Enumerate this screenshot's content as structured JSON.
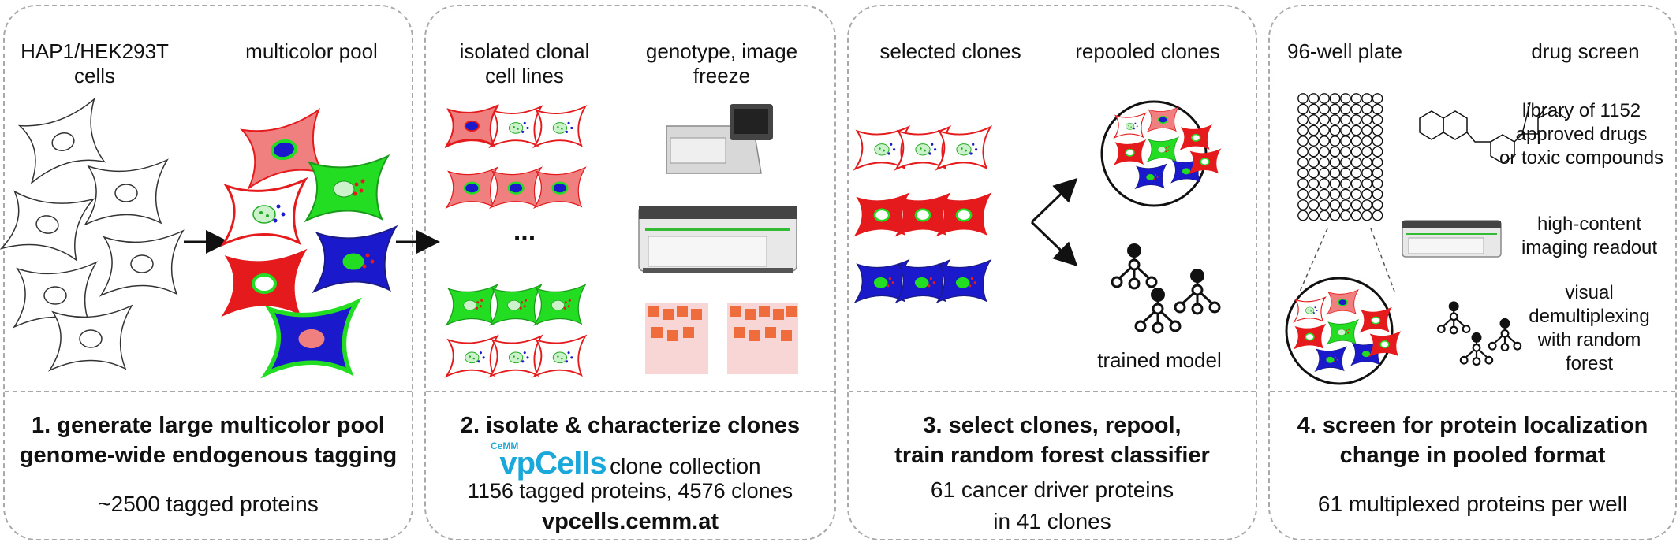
{
  "panel1": {
    "label_left_1": "HAP1/HEK293T",
    "label_left_2": "cells",
    "label_right": "multicolor pool",
    "title_1": "1. generate large multicolor pool",
    "title_2": "genome-wide endogenous tagging",
    "subtitle": "~2500 tagged proteins"
  },
  "panel2": {
    "label_left_1": "isolated clonal",
    "label_left_2": "cell lines",
    "label_right_1": "genotype, image",
    "label_right_2": "freeze",
    "ellipsis": "...",
    "title": "2. isolate & characterize clones",
    "logo_small": "CeMM",
    "logo_main": "vpCells",
    "logo_suffix": "clone collection",
    "stats": "1156 tagged proteins, 4576 clones",
    "url": "vpcells.cemm.at"
  },
  "panel3": {
    "label_left": "selected clones",
    "label_right": "repooled clones",
    "model_label": "trained model",
    "title_1": "3. select clones, repool,",
    "title_2": "train random forest classifier",
    "sub_1": "61 cancer driver proteins",
    "sub_2": "in 41 clones"
  },
  "panel4": {
    "label_left": "96-well plate",
    "label_right": "drug screen",
    "drugs_1": "library of 1152",
    "drugs_2": "approved drugs",
    "drugs_3": "or toxic compounds",
    "imaging_1": "high-content",
    "imaging_2": "imaging readout",
    "demux_1": "visual",
    "demux_2": "demultiplexing",
    "demux_3": "with random",
    "demux_4": "forest",
    "title_1": "4. screen for protein localization",
    "title_2": "change in pooled format",
    "subtitle": "61 multiplexed proteins per well"
  },
  "colors": {
    "border": "#a9a9a9",
    "pink": "#f08080",
    "red": "#e41a1c",
    "green": "#22dd22",
    "blue": "#1a1acc",
    "light_green": "#ccf2cc",
    "logo_blue": "#1aa7d9"
  }
}
